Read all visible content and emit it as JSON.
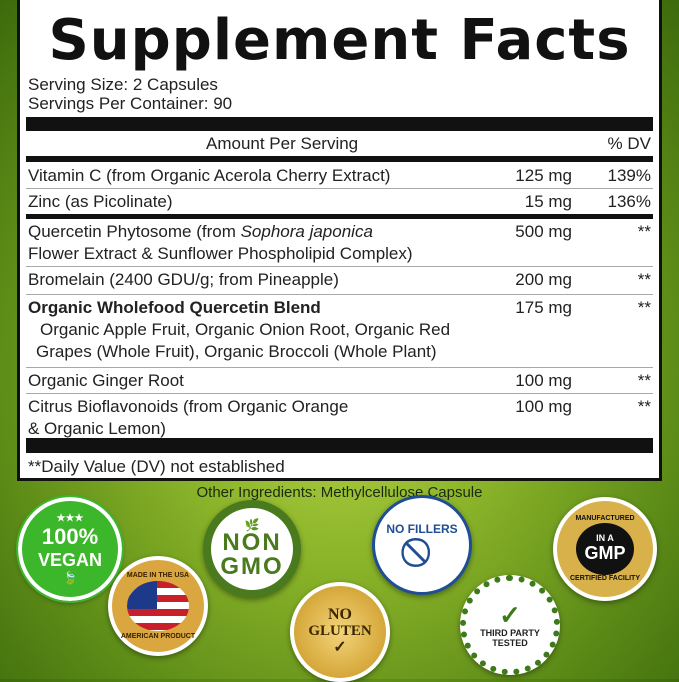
{
  "title": "Supplement Facts",
  "serving_size": "Serving Size: 2 Capsules",
  "servings_per_container": "Servings Per Container: 90",
  "header": {
    "amount": "Amount Per Serving",
    "dv": "% DV"
  },
  "rows": [
    {
      "name": "Vitamin C (from Organic Acerola Cherry Extract)",
      "amount": "125 mg",
      "dv": "139%"
    },
    {
      "name": "Zinc (as Picolinate)",
      "amount": "15 mg",
      "dv": "136%"
    },
    {
      "name_a": "Quercetin Phytosome (from ",
      "name_i": "Sophora japonica",
      "name_b": "Flower Extract & Sunflower Phospholipid Complex)",
      "amount": "500 mg",
      "dv": "**"
    },
    {
      "name": "Bromelain (2400 GDU/g; from Pineapple)",
      "amount": "200 mg",
      "dv": "**"
    },
    {
      "name": "Organic Wholefood Quercetin Blend",
      "sub1": "Organic Apple Fruit, Organic Onion Root, Organic Red",
      "sub2": "Grapes (Whole Fruit), Organic Broccoli (Whole Plant)",
      "amount": "175 mg",
      "dv": "**"
    },
    {
      "name": "Organic Ginger Root",
      "amount": "100 mg",
      "dv": "**"
    },
    {
      "name": "Citrus Bioflavonoids (from Organic Orange",
      "name2": "& Organic Lemon)",
      "amount": "100 mg",
      "dv": "**"
    }
  ],
  "footnote": "**Daily Value (DV) not established",
  "other_ingredients": "Other Ingredients: Methylcellulose Capsule",
  "badges": {
    "vegan": {
      "l1": "100%",
      "l2": "VEGAN",
      "color": "#3cb62a"
    },
    "usa": {
      "l1": "MADE IN THE USA",
      "l2": "AMERICAN PRODUCT"
    },
    "nongmo": {
      "l1": "NON",
      "l2": "GMO",
      "color": "#4a7a1e"
    },
    "gluten": {
      "l1": "NO",
      "l2": "GLUTEN",
      "l3": "✓"
    },
    "fillers": {
      "l1": "NO FILLERS",
      "color": "#1f4e94"
    },
    "third": {
      "l1": "✓",
      "l2": "THIRD PARTY",
      "l3": "TESTED",
      "color": "#3d7a1a"
    },
    "gmp": {
      "l1": "MANUFACTURED",
      "l2": "IN A",
      "l3": "GMP",
      "l4": "CERTIFIED FACILITY"
    }
  }
}
